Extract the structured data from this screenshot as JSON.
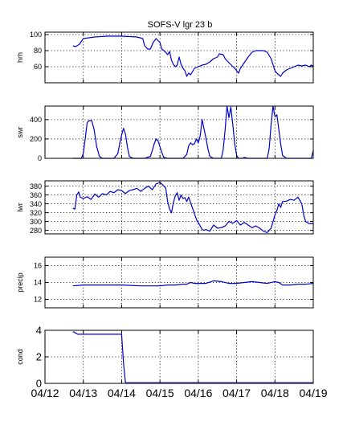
{
  "chart_data": [
    {
      "type": "line",
      "title": "SOFS-V  lgr 23 b",
      "ylabel": "hrh",
      "ylim": [
        40,
        103
      ],
      "yticks": [
        60,
        80,
        100
      ],
      "xlim": [
        0,
        7
      ],
      "xticks": [
        0,
        1,
        2,
        3,
        4,
        5,
        6,
        7
      ],
      "xticklabels": [],
      "color": "#0000cc",
      "x": [
        0.73,
        0.8,
        0.9,
        1.0,
        1.3,
        1.6,
        2.0,
        2.4,
        2.55,
        2.6,
        2.68,
        2.75,
        2.82,
        2.9,
        3.0,
        3.05,
        3.15,
        3.2,
        3.25,
        3.3,
        3.35,
        3.4,
        3.45,
        3.5,
        3.55,
        3.6,
        3.65,
        3.7,
        3.75,
        3.8,
        3.9,
        4.0,
        4.1,
        4.2,
        4.3,
        4.4,
        4.5,
        4.55,
        4.65,
        4.7,
        4.8,
        4.95,
        5.0,
        5.05,
        5.1,
        5.2,
        5.3,
        5.4,
        5.5,
        5.6,
        5.7,
        5.8,
        5.9,
        6.0,
        6.05,
        6.1,
        6.15,
        6.2,
        6.3,
        6.4,
        6.5,
        6.6,
        6.7,
        6.8,
        6.9,
        6.95,
        7.0
      ],
      "y": [
        86,
        85,
        88,
        95,
        97,
        98,
        98,
        97,
        95,
        86,
        82,
        82,
        90,
        95,
        90,
        82,
        78,
        75,
        79,
        68,
        63,
        60,
        62,
        72,
        63,
        58,
        55,
        48,
        52,
        50,
        58,
        60,
        62,
        63,
        66,
        70,
        72,
        76,
        75,
        70,
        65,
        58,
        55,
        52,
        58,
        65,
        72,
        78,
        80,
        80,
        80,
        78,
        70,
        55,
        52,
        50,
        48,
        52,
        56,
        58,
        60,
        62,
        61,
        62,
        60,
        62,
        60
      ]
    },
    {
      "type": "line",
      "ylabel": "swr",
      "ylim": [
        0,
        540
      ],
      "yticks": [
        0,
        200,
        400
      ],
      "xlim": [
        0,
        7
      ],
      "xticks": [
        0,
        1,
        2,
        3,
        4,
        5,
        6,
        7
      ],
      "xticklabels": [],
      "color": "#0000cc",
      "x": [
        0.73,
        0.95,
        1.0,
        1.05,
        1.1,
        1.15,
        1.22,
        1.28,
        1.35,
        1.42,
        1.5,
        1.8,
        1.9,
        1.95,
        2.0,
        2.05,
        2.1,
        2.15,
        2.2,
        2.3,
        2.6,
        2.75,
        2.8,
        2.85,
        2.9,
        2.95,
        3.0,
        3.05,
        3.1,
        3.2,
        3.6,
        3.7,
        3.75,
        3.8,
        3.85,
        3.9,
        3.95,
        4.0,
        4.05,
        4.1,
        4.2,
        4.25,
        4.3,
        4.4,
        4.6,
        4.65,
        4.7,
        4.75,
        4.8,
        4.85,
        4.9,
        4.95,
        5.0,
        5.05,
        5.15,
        5.2,
        5.3,
        5.4,
        5.8,
        5.85,
        5.9,
        5.95,
        6.0,
        6.05,
        6.1,
        6.15,
        6.2,
        6.3,
        6.5,
        6.6,
        6.8,
        6.95,
        7.0
      ],
      "y": [
        0,
        0,
        50,
        200,
        370,
        390,
        390,
        300,
        120,
        20,
        0,
        0,
        50,
        150,
        240,
        310,
        250,
        120,
        20,
        0,
        0,
        20,
        80,
        150,
        200,
        180,
        120,
        60,
        10,
        0,
        0,
        40,
        130,
        160,
        140,
        150,
        200,
        160,
        230,
        400,
        210,
        100,
        20,
        0,
        0,
        90,
        300,
        540,
        420,
        530,
        350,
        150,
        30,
        0,
        0,
        10,
        0,
        0,
        0,
        100,
        350,
        540,
        430,
        450,
        300,
        150,
        30,
        0,
        0,
        0,
        0,
        0,
        80
      ]
    },
    {
      "type": "line",
      "ylabel": "lwr",
      "ylim": [
        272,
        392
      ],
      "yticks": [
        280,
        300,
        320,
        340,
        360,
        380
      ],
      "xlim": [
        0,
        7
      ],
      "xticks": [
        0,
        1,
        2,
        3,
        4,
        5,
        6,
        7
      ],
      "xticklabels": [],
      "color": "#0000cc",
      "x": [
        0.73,
        0.78,
        0.83,
        0.88,
        0.92,
        1.0,
        1.1,
        1.2,
        1.3,
        1.4,
        1.5,
        1.6,
        1.7,
        1.8,
        1.9,
        2.0,
        2.1,
        2.2,
        2.3,
        2.4,
        2.5,
        2.6,
        2.7,
        2.8,
        2.9,
        3.0,
        3.05,
        3.1,
        3.15,
        3.2,
        3.25,
        3.3,
        3.35,
        3.4,
        3.45,
        3.5,
        3.55,
        3.6,
        3.65,
        3.7,
        3.75,
        3.85,
        3.95,
        4.05,
        4.1,
        4.15,
        4.2,
        4.3,
        4.4,
        4.5,
        4.6,
        4.7,
        4.8,
        4.9,
        5.0,
        5.1,
        5.2,
        5.3,
        5.4,
        5.5,
        5.6,
        5.7,
        5.8,
        5.9,
        6.0,
        6.05,
        6.1,
        6.15,
        6.2,
        6.3,
        6.4,
        6.5,
        6.6,
        6.7,
        6.75,
        6.8,
        6.9,
        7.0
      ],
      "y": [
        330,
        328,
        360,
        367,
        355,
        352,
        356,
        350,
        362,
        355,
        363,
        360,
        368,
        365,
        372,
        370,
        363,
        370,
        372,
        375,
        368,
        375,
        380,
        372,
        385,
        388,
        385,
        380,
        376,
        345,
        328,
        320,
        342,
        358,
        365,
        348,
        360,
        352,
        354,
        345,
        355,
        330,
        305,
        290,
        282,
        280,
        282,
        278,
        292,
        285,
        286,
        290,
        300,
        296,
        302,
        292,
        298,
        292,
        286,
        290,
        285,
        278,
        275,
        285,
        315,
        325,
        340,
        332,
        345,
        346,
        350,
        348,
        355,
        340,
        315,
        300,
        295,
        295
      ]
    },
    {
      "type": "line",
      "ylabel": "precip",
      "ylim": [
        11,
        17
      ],
      "yticks": [
        12,
        14,
        16
      ],
      "xlim": [
        0,
        7
      ],
      "xticks": [
        0,
        1,
        2,
        3,
        4,
        5,
        6,
        7
      ],
      "xticklabels": [],
      "color": "#0000cc",
      "x": [
        0.73,
        1.0,
        1.5,
        2.0,
        2.5,
        3.0,
        3.2,
        3.4,
        3.6,
        3.7,
        3.8,
        3.9,
        4.0,
        4.2,
        4.4,
        4.6,
        4.8,
        5.0,
        5.2,
        5.4,
        5.6,
        5.8,
        6.0,
        6.1,
        6.2,
        6.4,
        6.6,
        6.8,
        7.0
      ],
      "y": [
        13.6,
        13.7,
        13.7,
        13.7,
        13.6,
        13.6,
        13.7,
        13.7,
        13.8,
        13.8,
        14.0,
        13.9,
        13.9,
        13.9,
        14.2,
        14.1,
        13.9,
        13.9,
        14.0,
        14.1,
        14.0,
        13.9,
        14.1,
        14.0,
        13.7,
        13.7,
        13.8,
        13.8,
        13.9
      ]
    },
    {
      "type": "line",
      "ylabel": "cond",
      "ylim": [
        0,
        4
      ],
      "yticks": [
        0,
        2,
        4
      ],
      "xlim": [
        0,
        7
      ],
      "xticks": [
        0,
        1,
        2,
        3,
        4,
        5,
        6,
        7
      ],
      "xticklabels": [
        "04/12",
        "04/13",
        "04/14",
        "04/15",
        "04/16",
        "04/17",
        "04/18",
        "04/19"
      ],
      "color": "#0000cc",
      "x": [
        0.73,
        0.8,
        0.85,
        1.0,
        1.5,
        1.98,
        2.0,
        2.05,
        2.1,
        2.5,
        3.0,
        4.0,
        5.0,
        6.0,
        7.0
      ],
      "y": [
        3.9,
        3.8,
        3.7,
        3.7,
        3.7,
        3.7,
        3.7,
        1.5,
        0.05,
        0.05,
        0.05,
        0.05,
        0.05,
        0.05,
        0.05
      ]
    }
  ]
}
